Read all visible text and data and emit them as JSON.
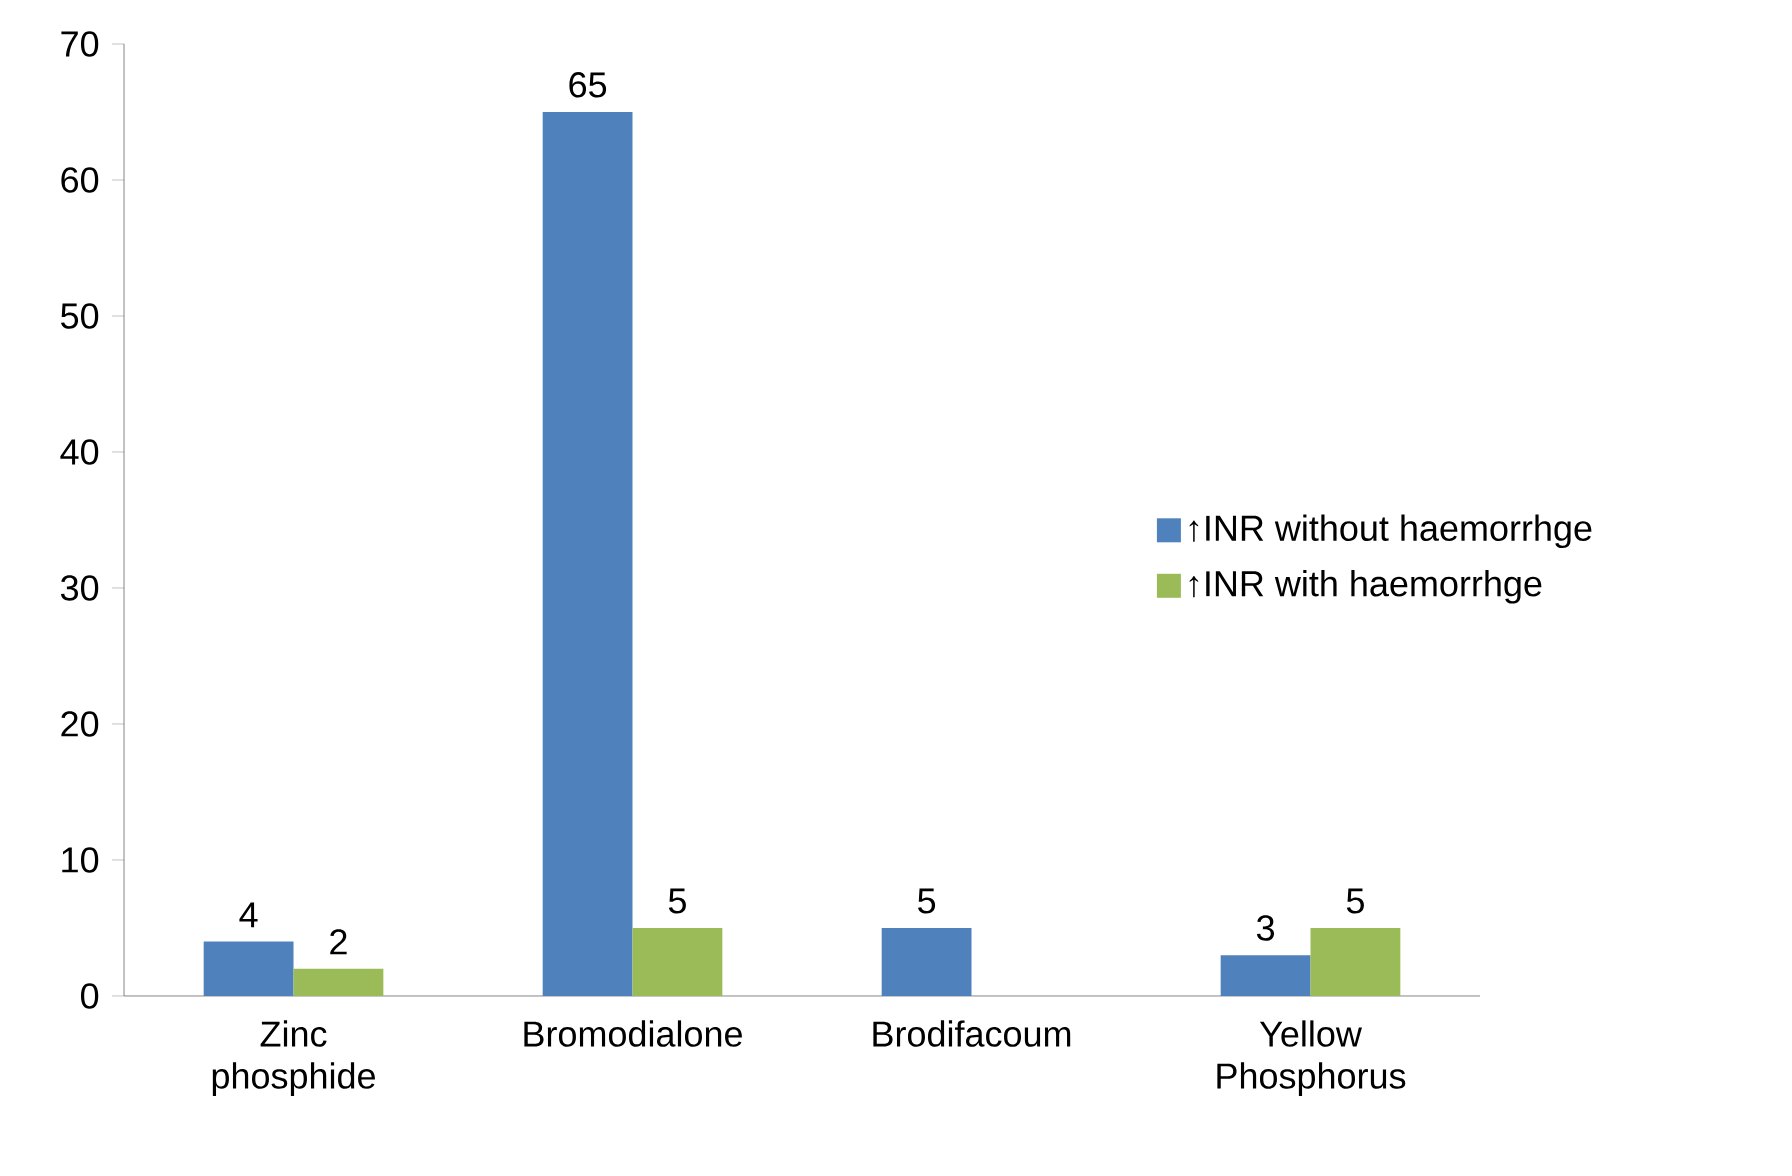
{
  "chart_data": {
    "type": "bar",
    "categories": [
      "Zinc phosphide",
      "Bromodialone",
      "Brodifacoum",
      "Yellow Phosphorus"
    ],
    "series": [
      {
        "name": "↑INR without haemorrhge",
        "color": "#4f81bd",
        "values": [
          4,
          65,
          5,
          3
        ]
      },
      {
        "name": "↑INR with haemorrhge",
        "color": "#9bbb59",
        "values": [
          2,
          5,
          null,
          5
        ]
      }
    ],
    "ylim": [
      0,
      70
    ],
    "yticks": [
      0,
      10,
      20,
      30,
      40,
      50,
      60,
      70
    ],
    "data_labels": true,
    "legend": "right"
  }
}
